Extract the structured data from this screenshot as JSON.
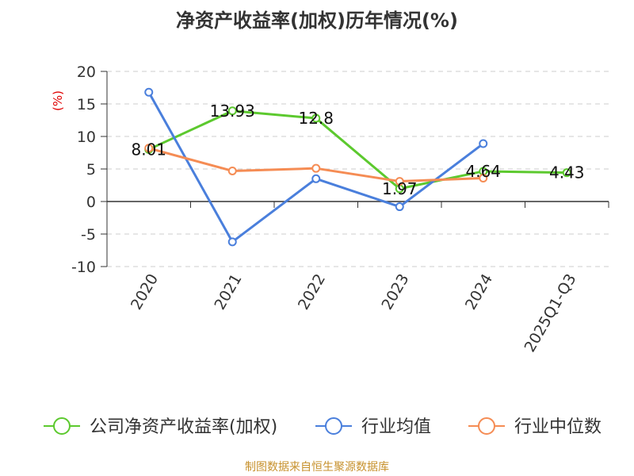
{
  "chart_data": {
    "type": "line",
    "title": "净资产收益率(加权)历年情况(%)",
    "ylabel": "(%)",
    "categories": [
      "2020",
      "2021",
      "2022",
      "2023",
      "2024",
      "2025Q1-Q3"
    ],
    "ylim": [
      -10,
      20
    ],
    "yticks": [
      20,
      15,
      10,
      5,
      0,
      -5,
      -10
    ],
    "grid": true,
    "legend_position": "bottom",
    "series": [
      {
        "name": "公司净资产收益率(加权)",
        "color": "#5cc92e",
        "values": [
          8.01,
          13.93,
          12.8,
          1.97,
          4.64,
          4.43
        ],
        "labels": [
          "8.01",
          "13.93",
          "12.8",
          "1.97",
          "4.64",
          "4.43"
        ]
      },
      {
        "name": "行业均值",
        "color": "#4a7fdc",
        "values": [
          16.8,
          -6.2,
          3.5,
          -0.8,
          8.9,
          null
        ]
      },
      {
        "name": "行业中位数",
        "color": "#f58c54",
        "values": [
          8.2,
          4.7,
          5.1,
          3.1,
          3.6,
          null
        ]
      }
    ]
  },
  "footer": "制图数据来自恒生聚源数据库"
}
